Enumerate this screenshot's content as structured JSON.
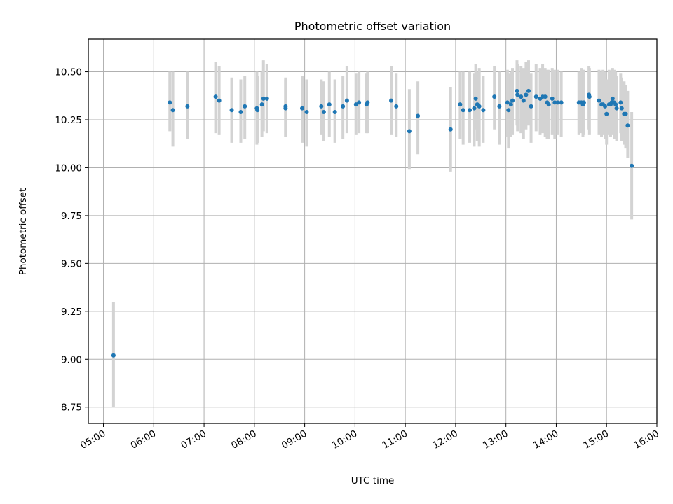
{
  "chart_data": {
    "type": "scatter",
    "title": "Photometric offset variation",
    "xlabel": "UTC time",
    "ylabel": "Photometric offset",
    "grid": true,
    "xlim": [
      4.7,
      16.0
    ],
    "ylim": [
      8.665,
      10.67
    ],
    "x_ticks": [
      5,
      6,
      7,
      8,
      9,
      10,
      11,
      12,
      13,
      14,
      15,
      16
    ],
    "x_tick_labels": [
      "05:00",
      "06:00",
      "07:00",
      "08:00",
      "09:00",
      "10:00",
      "11:00",
      "12:00",
      "13:00",
      "14:00",
      "15:00",
      "16:00"
    ],
    "y_ticks": [
      8.75,
      9.0,
      9.25,
      9.5,
      9.75,
      10.0,
      10.25,
      10.5
    ],
    "y_tick_labels": [
      "8.75",
      "9.00",
      "9.25",
      "9.50",
      "9.75",
      "10.00",
      "10.25",
      "10.50"
    ],
    "colors": {
      "point": "#1f77b4",
      "errorbar": "#d3d3d3",
      "grid": "#b0b0b0"
    },
    "series": [
      {
        "name": "Photometric offset",
        "x": [
          5.2,
          6.32,
          6.38,
          6.67,
          7.23,
          7.3,
          7.55,
          7.73,
          7.81,
          8.05,
          8.06,
          8.15,
          8.18,
          8.25,
          8.62,
          8.62,
          8.95,
          9.04,
          9.33,
          9.38,
          9.49,
          9.6,
          9.76,
          9.84,
          10.02,
          10.08,
          10.23,
          10.25,
          10.72,
          10.82,
          11.08,
          11.25,
          11.9,
          12.09,
          12.15,
          12.28,
          12.37,
          12.4,
          12.43,
          12.47,
          12.55,
          12.77,
          12.87,
          13.03,
          13.05,
          13.1,
          13.13,
          13.22,
          13.23,
          13.3,
          13.35,
          13.4,
          13.45,
          13.5,
          13.6,
          13.68,
          13.73,
          13.78,
          13.82,
          13.85,
          13.92,
          13.97,
          14.03,
          14.1,
          14.45,
          14.5,
          14.53,
          14.55,
          14.65,
          14.66,
          14.85,
          14.9,
          14.93,
          14.97,
          15.0,
          15.05,
          15.08,
          15.1,
          15.12,
          15.15,
          15.18,
          15.2,
          15.28,
          15.3,
          15.35,
          15.38,
          15.42,
          15.5
        ],
        "y": [
          9.02,
          10.34,
          10.3,
          10.32,
          10.37,
          10.35,
          10.3,
          10.29,
          10.32,
          10.31,
          10.3,
          10.33,
          10.36,
          10.36,
          10.32,
          10.31,
          10.31,
          10.29,
          10.32,
          10.29,
          10.33,
          10.29,
          10.32,
          10.35,
          10.33,
          10.34,
          10.33,
          10.34,
          10.35,
          10.32,
          10.19,
          10.27,
          10.2,
          10.33,
          10.3,
          10.3,
          10.31,
          10.36,
          10.33,
          10.32,
          10.3,
          10.37,
          10.32,
          10.34,
          10.3,
          10.33,
          10.35,
          10.4,
          10.38,
          10.37,
          10.35,
          10.38,
          10.4,
          10.32,
          10.37,
          10.36,
          10.37,
          10.37,
          10.34,
          10.33,
          10.36,
          10.34,
          10.34,
          10.34,
          10.34,
          10.34,
          10.33,
          10.34,
          10.38,
          10.37,
          10.35,
          10.33,
          10.33,
          10.32,
          10.28,
          10.33,
          10.33,
          10.34,
          10.36,
          10.34,
          10.33,
          10.31,
          10.34,
          10.31,
          10.28,
          10.28,
          10.22,
          10.01
        ],
        "err_low": [
          8.75,
          10.19,
          10.11,
          10.15,
          10.18,
          10.17,
          10.13,
          10.13,
          10.15,
          10.12,
          10.13,
          10.16,
          10.19,
          10.18,
          10.16,
          10.16,
          10.13,
          10.11,
          10.17,
          10.14,
          10.16,
          10.13,
          10.15,
          10.18,
          10.17,
          10.18,
          10.18,
          10.18,
          10.17,
          10.16,
          9.99,
          10.07,
          9.98,
          10.15,
          10.12,
          10.13,
          10.11,
          10.2,
          10.14,
          10.11,
          10.13,
          10.2,
          10.12,
          10.16,
          10.1,
          10.16,
          10.17,
          10.22,
          10.19,
          10.18,
          10.15,
          10.2,
          10.22,
          10.13,
          10.19,
          10.17,
          10.18,
          10.16,
          10.15,
          10.15,
          10.17,
          10.15,
          10.17,
          10.16,
          10.17,
          10.18,
          10.16,
          10.17,
          10.2,
          10.17,
          10.17,
          10.16,
          10.17,
          10.15,
          10.12,
          10.17,
          10.16,
          10.17,
          10.2,
          10.15,
          10.17,
          10.14,
          10.18,
          10.14,
          10.12,
          10.1,
          10.05,
          9.73
        ],
        "err_high": [
          9.3,
          10.5,
          10.5,
          10.5,
          10.55,
          10.53,
          10.47,
          10.46,
          10.48,
          10.5,
          10.48,
          10.5,
          10.56,
          10.54,
          10.47,
          10.46,
          10.48,
          10.46,
          10.46,
          10.45,
          10.5,
          10.46,
          10.48,
          10.53,
          10.49,
          10.5,
          10.49,
          10.5,
          10.53,
          10.49,
          10.41,
          10.45,
          10.42,
          10.5,
          10.5,
          10.5,
          10.49,
          10.54,
          10.5,
          10.52,
          10.48,
          10.53,
          10.5,
          10.51,
          10.49,
          10.5,
          10.52,
          10.56,
          10.54,
          10.53,
          10.52,
          10.55,
          10.56,
          10.49,
          10.54,
          10.52,
          10.54,
          10.52,
          10.51,
          10.51,
          10.52,
          10.51,
          10.51,
          10.5,
          10.5,
          10.52,
          10.51,
          10.51,
          10.53,
          10.52,
          10.51,
          10.5,
          10.51,
          10.5,
          10.46,
          10.51,
          10.5,
          10.5,
          10.52,
          10.51,
          10.5,
          10.48,
          10.49,
          10.47,
          10.45,
          10.43,
          10.4,
          10.29
        ]
      }
    ]
  }
}
